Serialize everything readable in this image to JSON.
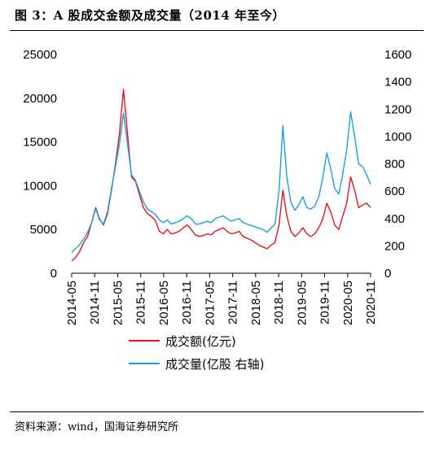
{
  "title": "图 3：A 股成交金额及成交量（2014 年至今）",
  "source": "资料来源：wind，国海证券研究所",
  "chart_data": {
    "type": "line",
    "x_tick_labels": [
      "2014-05",
      "2014-11",
      "2015-05",
      "2015-11",
      "2016-05",
      "2016-11",
      "2017-05",
      "2017-11",
      "2018-05",
      "2018-11",
      "2019-05",
      "2019-11",
      "2020-05",
      "2020-11"
    ],
    "y_left": {
      "ticks": [
        "0",
        "5000",
        "10000",
        "15000",
        "20000",
        "25000"
      ],
      "range": [
        0,
        25000
      ]
    },
    "y_right": {
      "ticks": [
        "0",
        "200",
        "400",
        "600",
        "800",
        "1000",
        "1200",
        "1400",
        "1600"
      ],
      "range": [
        0,
        1600
      ]
    },
    "series": [
      {
        "name": "成交额(亿元)",
        "axis": "left",
        "color": "#e8121a",
        "points": [
          [
            0,
            1400
          ],
          [
            1,
            1800
          ],
          [
            2,
            2500
          ],
          [
            3,
            3500
          ],
          [
            4,
            4200
          ],
          [
            5,
            5800
          ],
          [
            6,
            7500
          ],
          [
            7,
            6200
          ],
          [
            8,
            5500
          ],
          [
            9,
            6800
          ],
          [
            10,
            9500
          ],
          [
            11,
            12500
          ],
          [
            12,
            16000
          ],
          [
            13,
            21000
          ],
          [
            14,
            16000
          ],
          [
            15,
            11000
          ],
          [
            16,
            10500
          ],
          [
            17,
            9000
          ],
          [
            18,
            7500
          ],
          [
            19,
            6800
          ],
          [
            20,
            6500
          ],
          [
            21,
            6000
          ],
          [
            22,
            4800
          ],
          [
            23,
            4500
          ],
          [
            24,
            5000
          ],
          [
            25,
            4500
          ],
          [
            26,
            4600
          ],
          [
            27,
            4800
          ],
          [
            28,
            5200
          ],
          [
            29,
            5500
          ],
          [
            30,
            5000
          ],
          [
            31,
            4400
          ],
          [
            32,
            4200
          ],
          [
            33,
            4300
          ],
          [
            34,
            4500
          ],
          [
            35,
            4400
          ],
          [
            36,
            4800
          ],
          [
            37,
            5000
          ],
          [
            38,
            5200
          ],
          [
            39,
            4800
          ],
          [
            40,
            4500
          ],
          [
            41,
            4600
          ],
          [
            42,
            4800
          ],
          [
            43,
            4200
          ],
          [
            44,
            4000
          ],
          [
            45,
            3800
          ],
          [
            46,
            3500
          ],
          [
            47,
            3200
          ],
          [
            48,
            3000
          ],
          [
            49,
            2800
          ],
          [
            50,
            3200
          ],
          [
            51,
            3500
          ],
          [
            52,
            5500
          ],
          [
            53,
            9500
          ],
          [
            54,
            6500
          ],
          [
            55,
            4800
          ],
          [
            56,
            4200
          ],
          [
            57,
            4600
          ],
          [
            58,
            5200
          ],
          [
            59,
            4500
          ],
          [
            60,
            4200
          ],
          [
            61,
            4500
          ],
          [
            62,
            5200
          ],
          [
            63,
            6200
          ],
          [
            64,
            8000
          ],
          [
            65,
            7000
          ],
          [
            66,
            5500
          ],
          [
            67,
            5000
          ],
          [
            68,
            6500
          ],
          [
            69,
            8000
          ],
          [
            70,
            11000
          ],
          [
            71,
            9500
          ],
          [
            72,
            7500
          ],
          [
            73,
            7800
          ],
          [
            74,
            8000
          ],
          [
            75,
            7500
          ]
        ]
      },
      {
        "name": "成交量(亿股 右轴)",
        "axis": "right",
        "color": "#1a9fe0",
        "points": [
          [
            0,
            150
          ],
          [
            1,
            180
          ],
          [
            2,
            210
          ],
          [
            3,
            250
          ],
          [
            4,
            300
          ],
          [
            5,
            370
          ],
          [
            6,
            470
          ],
          [
            7,
            390
          ],
          [
            8,
            360
          ],
          [
            9,
            450
          ],
          [
            10,
            620
          ],
          [
            11,
            780
          ],
          [
            12,
            950
          ],
          [
            13,
            1170
          ],
          [
            14,
            950
          ],
          [
            15,
            720
          ],
          [
            16,
            680
          ],
          [
            17,
            600
          ],
          [
            18,
            520
          ],
          [
            19,
            470
          ],
          [
            20,
            450
          ],
          [
            21,
            430
          ],
          [
            22,
            390
          ],
          [
            23,
            370
          ],
          [
            24,
            390
          ],
          [
            25,
            360
          ],
          [
            26,
            370
          ],
          [
            27,
            380
          ],
          [
            28,
            400
          ],
          [
            29,
            420
          ],
          [
            30,
            400
          ],
          [
            31,
            360
          ],
          [
            32,
            360
          ],
          [
            33,
            370
          ],
          [
            34,
            380
          ],
          [
            35,
            370
          ],
          [
            36,
            400
          ],
          [
            37,
            410
          ],
          [
            38,
            420
          ],
          [
            39,
            400
          ],
          [
            40,
            380
          ],
          [
            41,
            390
          ],
          [
            42,
            400
          ],
          [
            43,
            370
          ],
          [
            44,
            360
          ],
          [
            45,
            350
          ],
          [
            46,
            340
          ],
          [
            47,
            330
          ],
          [
            48,
            320
          ],
          [
            49,
            300
          ],
          [
            50,
            330
          ],
          [
            51,
            360
          ],
          [
            52,
            600
          ],
          [
            53,
            1080
          ],
          [
            54,
            700
          ],
          [
            55,
            520
          ],
          [
            56,
            460
          ],
          [
            57,
            500
          ],
          [
            58,
            560
          ],
          [
            59,
            480
          ],
          [
            60,
            470
          ],
          [
            61,
            490
          ],
          [
            62,
            560
          ],
          [
            63,
            700
          ],
          [
            64,
            880
          ],
          [
            65,
            760
          ],
          [
            66,
            620
          ],
          [
            67,
            580
          ],
          [
            68,
            720
          ],
          [
            69,
            900
          ],
          [
            70,
            1180
          ],
          [
            71,
            1000
          ],
          [
            72,
            800
          ],
          [
            73,
            780
          ],
          [
            74,
            720
          ],
          [
            75,
            650
          ]
        ]
      }
    ],
    "legend": [
      "成交额(亿元)",
      "成交量(亿股 右轴)"
    ],
    "legend_position": "bottom"
  }
}
